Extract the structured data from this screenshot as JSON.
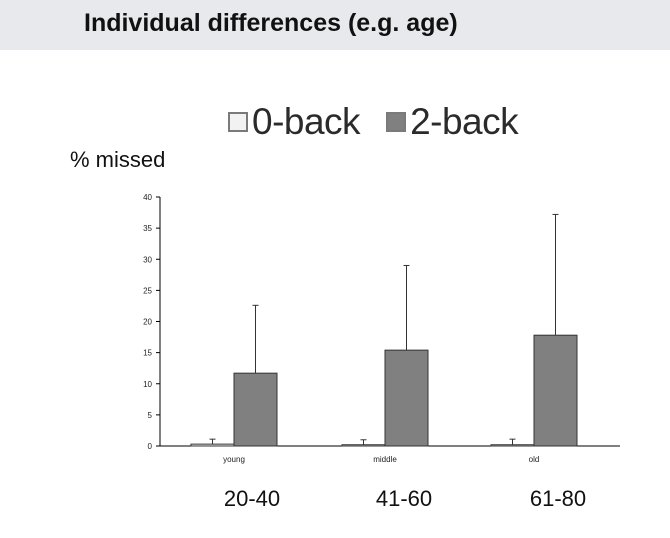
{
  "header": {
    "title": "Individual differences (e.g. age)"
  },
  "colors": {
    "header_bg": "#e7e9ec",
    "series_0back": "#f2f2f2",
    "series_2back": "#808080",
    "axis": "#000000"
  },
  "chart_data": {
    "type": "bar",
    "categories": [
      "young",
      "middle",
      "old"
    ],
    "series": [
      {
        "name": "0-back",
        "values": [
          0.3,
          0.2,
          0.2
        ],
        "error": [
          0.8,
          0.8,
          0.9
        ]
      },
      {
        "name": "2-back",
        "values": [
          11.7,
          15.4,
          17.8
        ],
        "error": [
          10.9,
          13.6,
          19.4
        ]
      }
    ],
    "ylabel": "% missed",
    "ylim": [
      0,
      40
    ],
    "yticks": [
      0,
      5,
      10,
      15,
      20,
      25,
      30,
      35,
      40
    ],
    "legend": "top",
    "grid": false
  },
  "age_groups": [
    "20-40",
    "41-60",
    "61-80"
  ]
}
